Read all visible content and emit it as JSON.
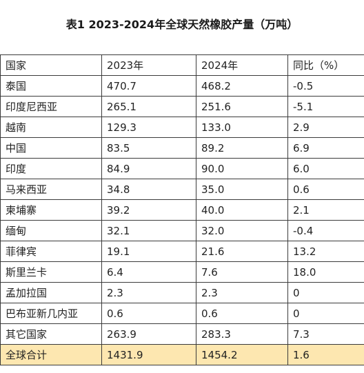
{
  "title": "表1 2023-2024年全球天然橡胶产量（万吨）",
  "table": {
    "headers": [
      "国家",
      "2023年",
      "2024年",
      "同比（%）"
    ],
    "rows": [
      [
        "泰国",
        "470.7",
        "468.2",
        "-0.5"
      ],
      [
        "印度尼西亚",
        "265.1",
        "251.6",
        "-5.1"
      ],
      [
        "越南",
        "129.3",
        "133.0",
        "2.9"
      ],
      [
        "中国",
        "83.5",
        "89.2",
        "6.9"
      ],
      [
        "印度",
        "84.9",
        "90.0",
        "6.0"
      ],
      [
        "马来西亚",
        "34.8",
        "35.0",
        "0.6"
      ],
      [
        "柬埔寨",
        "39.2",
        "40.0",
        "2.1"
      ],
      [
        "缅甸",
        "32.1",
        "32.0",
        "-0.4"
      ],
      [
        "菲律宾",
        "19.1",
        "21.6",
        "13.2"
      ],
      [
        "斯里兰卡",
        "6.4",
        "7.6",
        "18.0"
      ],
      [
        "孟加拉国",
        "2.3",
        "2.3",
        "0"
      ],
      [
        "巴布亚新几内亚",
        "0.6",
        "0.6",
        "0"
      ],
      [
        "其它国家",
        "263.9",
        "283.3",
        "7.3"
      ]
    ],
    "total": [
      "全球合计",
      "1431.9",
      "1454.2",
      "1.6"
    ]
  },
  "colors": {
    "total_row_background": "#fde7b0",
    "border": "#3a3a3a"
  }
}
